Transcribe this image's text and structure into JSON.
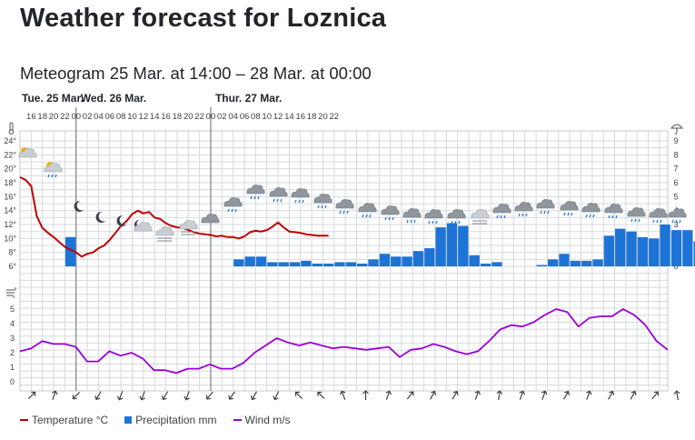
{
  "page": {
    "title": "Weather forecast for Loznica",
    "meteogram_title": "Meteogram 25 Mar. at 14:00 – 28 Mar. at 00:00"
  },
  "colors": {
    "temperature": "#c00000",
    "precipitation": "#1e73d6",
    "wind": "#9b00d9",
    "grid": "#d6d9dd",
    "day_separator": "#7c8086"
  },
  "legend": {
    "temperature": "Temperature °C",
    "precipitation": "Precipitation mm",
    "wind": "Wind m/s"
  },
  "chart_data": {
    "type": "line",
    "days": [
      {
        "label": "Tue. 25 Mar.",
        "start_hour_index": 0
      },
      {
        "label": "Wed. 26 Mar.",
        "start_hour_index": 10
      },
      {
        "label": "Thur. 27 Mar.",
        "start_hour_index": 34
      }
    ],
    "hour_ticks": [
      "16",
      "18",
      "20",
      "22",
      "00",
      "02",
      "04",
      "06",
      "08",
      "10",
      "12",
      "14",
      "16",
      "18",
      "20",
      "22",
      "00",
      "02",
      "04",
      "06",
      "08",
      "10",
      "12",
      "14",
      "16",
      "18",
      "20",
      "22"
    ],
    "temperature": {
      "name": "Temperature °C",
      "axis_ticks": [
        "6°",
        "8°",
        "10°",
        "12°",
        "14°",
        "16°",
        "18°",
        "20°",
        "22°",
        "24°"
      ],
      "ylim": [
        6,
        24
      ],
      "values": [
        18.8,
        18.4,
        17.5,
        13.2,
        11.5,
        10.8,
        10.2,
        9.5,
        8.8,
        8.4,
        8.0,
        7.4,
        7.8,
        8.0,
        8.6,
        9.0,
        9.8,
        10.8,
        11.8,
        12.5,
        13.5,
        14.0,
        13.6,
        13.8,
        13.0,
        12.8,
        12.2,
        11.8,
        11.6,
        11.5,
        11.2,
        10.9,
        10.7,
        10.6,
        10.5,
        10.3,
        10.4,
        10.2,
        10.2,
        10.0,
        10.3,
        10.9,
        11.1,
        11.0,
        11.2,
        11.7,
        12.3,
        11.6,
        11.0,
        10.9,
        10.8,
        10.6,
        10.5,
        10.4,
        10.4,
        10.4
      ]
    },
    "precipitation": {
      "name": "Precipitation mm",
      "axis_ticks": [
        "0",
        "1",
        "2",
        "3",
        "4",
        "5",
        "6",
        "7",
        "8",
        "9"
      ],
      "ylim": [
        0,
        9
      ],
      "values": [
        0,
        0,
        0,
        0,
        2.1,
        0,
        0,
        0,
        0,
        0,
        0,
        0,
        0,
        0,
        0,
        0,
        0,
        0,
        0,
        0.5,
        0.7,
        0.7,
        0.3,
        0.3,
        0.3,
        0.4,
        0.2,
        0.2,
        0.3,
        0.3,
        0.2,
        0.5,
        0.9,
        0.7,
        0.7,
        1.1,
        1.3,
        2.8,
        3.1,
        2.9,
        0.8,
        0.2,
        0.3,
        0,
        0,
        0,
        0.1,
        0.5,
        0.9,
        0.4,
        0.4,
        0.5,
        2.2,
        2.7,
        2.5,
        2.1,
        2.0,
        3.0,
        2.6,
        2.6,
        1.8,
        1.8,
        1.0
      ]
    },
    "wind": {
      "name": "Wind m/s",
      "axis_ticks": [
        "0",
        "1",
        "2",
        "3",
        "4",
        "5"
      ],
      "ylim": [
        0,
        5
      ],
      "values": [
        2.1,
        2.3,
        2.8,
        2.6,
        2.6,
        2.4,
        1.4,
        1.4,
        2.1,
        1.8,
        2.0,
        1.6,
        0.8,
        0.8,
        0.6,
        0.9,
        0.9,
        1.2,
        0.9,
        0.9,
        1.3,
        2.0,
        2.5,
        3.0,
        2.7,
        2.5,
        2.7,
        2.5,
        2.3,
        2.4,
        2.3,
        2.2,
        2.3,
        2.4,
        1.7,
        2.2,
        2.3,
        2.6,
        2.4,
        2.1,
        1.9,
        2.1,
        2.8,
        3.6,
        3.9,
        3.8,
        4.1,
        4.6,
        5.0,
        4.8,
        3.8,
        4.4,
        4.5,
        4.5,
        5.0,
        4.6,
        3.9,
        2.8,
        2.2
      ]
    },
    "wind_directions_deg": [
      225,
      200,
      45,
      30,
      20,
      20,
      30,
      20,
      40,
      35,
      30,
      25,
      135,
      135,
      160,
      180,
      200,
      220,
      210,
      210,
      200,
      190,
      200,
      200,
      210,
      200,
      210,
      210,
      220,
      170,
      180,
      180,
      200,
      190,
      190,
      170
    ],
    "weather_icons": [
      "partly-cloudy-day",
      "partly-cloudy-rain",
      "clear-night",
      "clear-night",
      "clear-night",
      "partly-cloudy-night",
      "cloudy-fog",
      "cloudy-fog",
      "cloudy",
      "cloudy-rain",
      "cloudy-rain",
      "cloudy-rain",
      "cloudy-rain",
      "cloudy-rain",
      "cloudy-rain",
      "cloudy-rain",
      "cloudy-rain",
      "cloudy-rain",
      "cloudy-rain",
      "cloudy-rain",
      "cloudy-fog",
      "cloudy-rain",
      "cloudy-rain",
      "cloudy-rain",
      "cloudy-rain",
      "cloudy-rain",
      "cloudy-rain",
      "cloudy-rain",
      "cloudy-rain",
      "cloudy-rain"
    ],
    "grid": true,
    "legend_position": "bottom-left"
  }
}
